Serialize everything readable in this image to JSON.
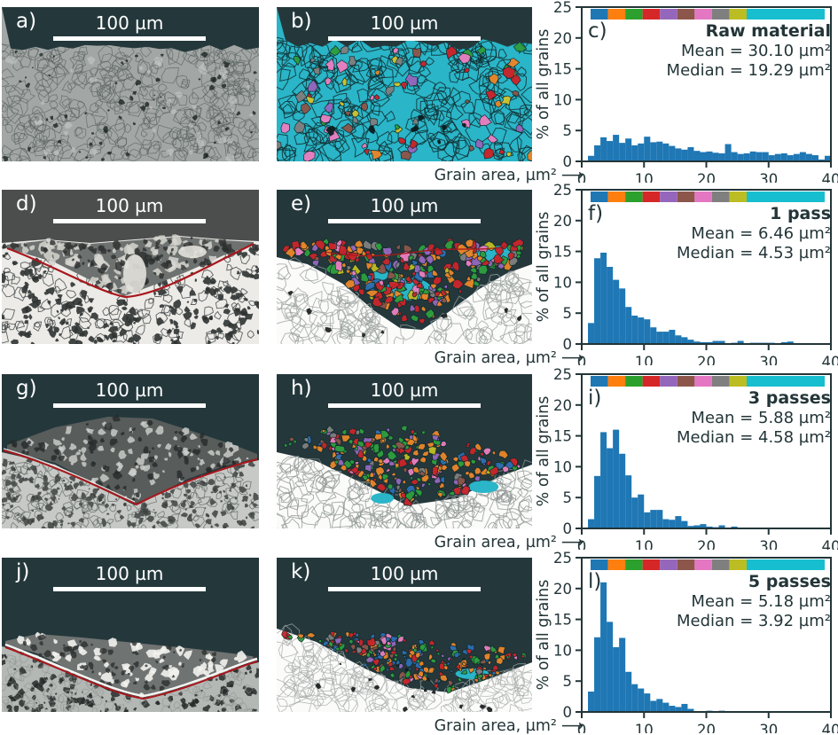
{
  "figure": {
    "description": "Microstructure panels with grain area histograms"
  },
  "colors": {
    "background_teal": "#24383c",
    "ink": "#233538",
    "histogram_bar": "#1f77b4",
    "red_interface_line": "#a8171c",
    "strip_palette": [
      "#1f77b4",
      "#ff7f0e",
      "#2ca02c",
      "#d62728",
      "#9467bd",
      "#8c564b",
      "#e377c2",
      "#7f7f7f",
      "#bcbd22",
      "#17becf"
    ],
    "grain_palette": {
      "red": "#c9252b",
      "green": "#2e9e3e",
      "orange": "#e8862a",
      "purple": "#9467bd",
      "pink": "#e87fc0",
      "brown": "#8c564b",
      "gray": "#7f7f7f",
      "blue": "#2d6fb2",
      "yellow": "#cfc32f",
      "olive": "#bcbd22",
      "cyan": "#2ab5c8"
    },
    "micrograph_grays": {
      "flat_base": "#a2a7a5",
      "boundary": "#5c6462",
      "dark_speck": "#222b2a",
      "pale": "#ecebe7",
      "mid": "#6d716f",
      "lens": "#585c5a",
      "band": "#6f7371",
      "lower": "#c6c9c6",
      "lower2": "#b4b8b5",
      "dgray_top": "#4b4e4d",
      "white": "#fbfbf9",
      "white_mesh": "#9aa19f"
    }
  },
  "micrographs": [
    {
      "label": "a)",
      "scalebar_label": "100 µm"
    },
    {
      "label": "b)",
      "scalebar_label": "100 µm"
    },
    {
      "label": "d)",
      "scalebar_label": "100 µm"
    },
    {
      "label": "e)",
      "scalebar_label": "100 µm"
    },
    {
      "label": "g)",
      "scalebar_label": "100 µm"
    },
    {
      "label": "h)",
      "scalebar_label": "100 µm"
    },
    {
      "label": "j)",
      "scalebar_label": "100 µm"
    },
    {
      "label": "k)",
      "scalebar_label": "100 µm"
    }
  ],
  "axes": {
    "ylabel": "% of all grains",
    "xlabel": "Grain area, µm²",
    "arrow_glyph": "⟶",
    "yticks": [
      0,
      5,
      10,
      15,
      20,
      25
    ],
    "xticks": [
      0,
      10,
      20,
      30,
      40
    ],
    "xlim": [
      0,
      40
    ],
    "ylim": [
      0,
      25
    ],
    "bin_width": 1
  },
  "chart_data": [
    {
      "type": "bar",
      "label": "c)",
      "title": "Raw material",
      "mean": 30.1,
      "median": 19.29,
      "mean_label": "Mean = 30.10 µm²",
      "median_label": "Median = 19.29 µm²",
      "values": [
        0,
        0.9,
        2.6,
        3.9,
        3.3,
        4.3,
        3.0,
        3.7,
        2.6,
        2.9,
        4.0,
        3.1,
        3.2,
        2.9,
        2.5,
        2.1,
        1.9,
        2.3,
        1.7,
        1.5,
        1.6,
        1.4,
        1.3,
        2.8,
        1.5,
        1.2,
        1.3,
        1.6,
        1.5,
        1.5,
        1.0,
        1.2,
        1.3,
        1.0,
        1.2,
        1.5,
        1.2,
        1.0,
        0.3,
        0.9
      ]
    },
    {
      "type": "bar",
      "label": "f)",
      "title": "1 pass",
      "mean": 6.46,
      "median": 4.53,
      "mean_label": "Mean = 6.46 µm²",
      "median_label": "Median = 4.53 µm²",
      "values": [
        0,
        3.4,
        13.9,
        14.8,
        12.5,
        10.4,
        9.0,
        6.0,
        4.6,
        4.3,
        4.0,
        2.7,
        2.0,
        2.0,
        2.3,
        1.4,
        1.1,
        0.7,
        0.4,
        0.3,
        0.3,
        0.5,
        0.5,
        0.1,
        0.2,
        0.5,
        0.1,
        0.2,
        0.2,
        0.2,
        0.2,
        0.1,
        0.3,
        0.4,
        0,
        0,
        0,
        0,
        0,
        0
      ]
    },
    {
      "type": "bar",
      "label": "i)",
      "title": "3 passes",
      "mean": 5.88,
      "median": 4.58,
      "mean_label": "Mean = 5.88 µm²",
      "median_label": "Median = 4.58 µm²",
      "values": [
        0,
        1.5,
        8.5,
        15.6,
        13.0,
        16.0,
        12.1,
        8.6,
        5.0,
        5.5,
        2.6,
        3.0,
        3.0,
        1.5,
        1.4,
        2.0,
        1.2,
        0.4,
        0.5,
        0.7,
        0.3,
        0.2,
        0.5,
        0.1,
        0.3,
        0,
        0,
        0,
        0,
        0,
        0,
        0,
        0,
        0,
        0,
        0,
        0,
        0,
        0,
        0
      ]
    },
    {
      "type": "bar",
      "label": "l)",
      "title": "5 passes",
      "mean": 5.18,
      "median": 3.92,
      "mean_label": "Mean = 5.18 µm²",
      "median_label": "Median = 3.92 µm²",
      "values": [
        0,
        3.3,
        12.1,
        21.0,
        14.6,
        10.5,
        12.0,
        6.5,
        4.5,
        3.8,
        3.0,
        1.8,
        2.1,
        1.5,
        1.0,
        0.8,
        1.3,
        0.5,
        0.1,
        0.1,
        0.2,
        0.1,
        0.2,
        0,
        0,
        0,
        0,
        0,
        0,
        0,
        0,
        0,
        0,
        0,
        0,
        0,
        0,
        0,
        0,
        0
      ]
    }
  ]
}
